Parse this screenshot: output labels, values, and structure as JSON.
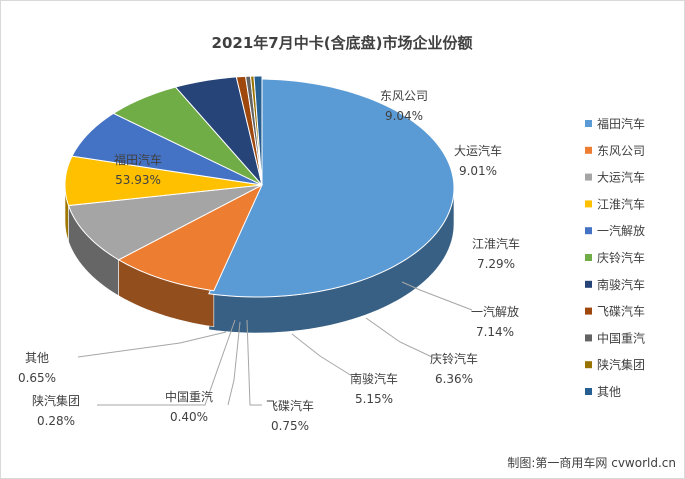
{
  "chart_data": {
    "type": "pie",
    "style": "3d-exploded",
    "title": "2021年7月中卡(含底盘)市场企业份额",
    "categories": [
      "福田汽车",
      "东风公司",
      "大运汽车",
      "江淮汽车",
      "一汽解放",
      "庆铃汽车",
      "南骏汽车",
      "飞碟汽车",
      "中国重汽",
      "陕汽集团",
      "其他"
    ],
    "values": [
      53.93,
      9.04,
      9.01,
      7.29,
      7.14,
      6.36,
      5.15,
      0.75,
      0.4,
      0.28,
      0.65
    ],
    "value_labels": [
      "53.93%",
      "9.04%",
      "9.01%",
      "7.29%",
      "7.14%",
      "6.36%",
      "5.15%",
      "0.75%",
      "0.40%",
      "0.28%",
      "0.65%"
    ],
    "colors": [
      "#5b9bd5",
      "#ed7d31",
      "#a5a5a5",
      "#ffc000",
      "#4472c4",
      "#70ad47",
      "#264478",
      "#9e480e",
      "#636363",
      "#997300",
      "#255e91"
    ],
    "legend_position": "right"
  },
  "credit": "制图:第一商用车网 cvworld.cn"
}
